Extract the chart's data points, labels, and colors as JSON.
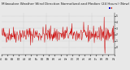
{
  "title": "Milwaukee Weather Wind Direction Normalized and Median (24 Hours) (New)",
  "background_color": "#e8e8e8",
  "plot_bg_color": "#e8e8e8",
  "grid_color": "#aaaaaa",
  "line_color": "#cc0000",
  "legend_normalized_color": "#0000cc",
  "legend_median_color": "#cc2200",
  "ylim": [
    -1.2,
    5.5
  ],
  "ytick_vals": [
    0,
    1,
    2,
    3,
    4,
    5
  ],
  "ytick_labels": [
    "0",
    "1",
    "2",
    "3",
    "4",
    "5"
  ],
  "n_points": 288,
  "seed": 42,
  "mean": 2.0,
  "std": 0.65,
  "spike_down_idx": 263,
  "spike_up_idx": 261,
  "spike_low_val": -1.0,
  "spike_high_val": 4.8,
  "n_xticks": 20,
  "title_fontsize": 3.0,
  "tick_fontsize": 2.2,
  "legend_fontsize": 2.5,
  "linewidth": 0.35
}
